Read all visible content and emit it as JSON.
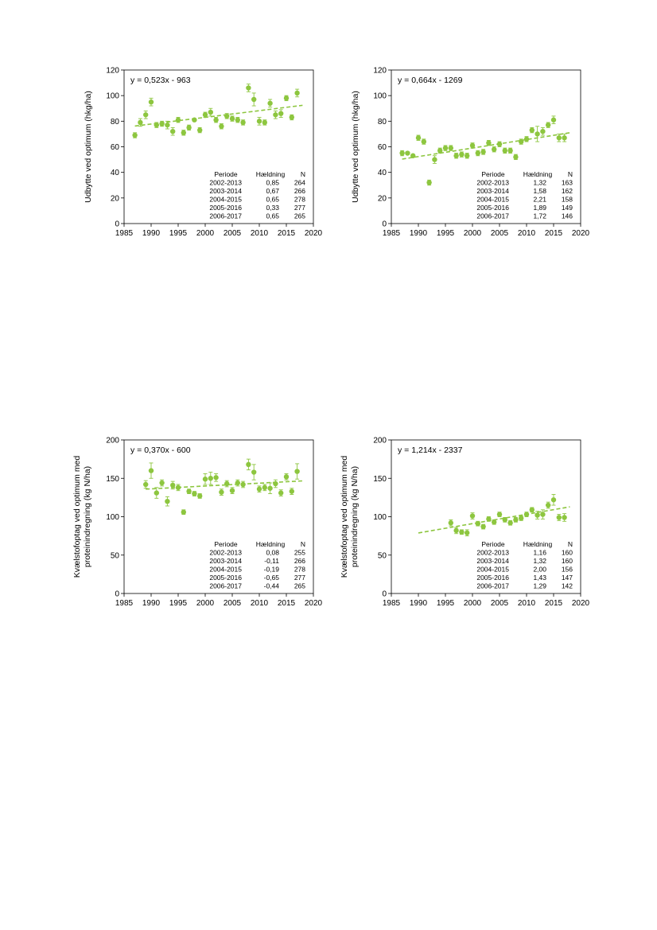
{
  "colors": {
    "marker": "#8dc63f",
    "trend": "#8dc63f",
    "axis": "#000000"
  },
  "chart_data": [
    {
      "type": "scatter",
      "equation": "y = 0,523x - 963",
      "ylabel": "Udbytte ved optimum (hkg/ha)",
      "xlim": [
        1985,
        2020
      ],
      "ylim": [
        0,
        120
      ],
      "xticks": [
        1985,
        1990,
        1995,
        2000,
        2005,
        2010,
        2015,
        2020
      ],
      "yticks": [
        0,
        20,
        40,
        60,
        80,
        100,
        120
      ],
      "trend": {
        "slope": 0.523,
        "intercept": -963,
        "x_range": [
          1987,
          2018
        ]
      },
      "points": [
        {
          "x": 1987,
          "y": 69,
          "err": 2
        },
        {
          "x": 1988,
          "y": 79,
          "err": 3
        },
        {
          "x": 1989,
          "y": 85,
          "err": 3
        },
        {
          "x": 1990,
          "y": 95,
          "err": 3
        },
        {
          "x": 1991,
          "y": 77,
          "err": 2
        },
        {
          "x": 1992,
          "y": 78,
          "err": 2
        },
        {
          "x": 1993,
          "y": 77,
          "err": 3
        },
        {
          "x": 1994,
          "y": 72,
          "err": 3
        },
        {
          "x": 1995,
          "y": 81,
          "err": 2
        },
        {
          "x": 1996,
          "y": 71,
          "err": 2
        },
        {
          "x": 1997,
          "y": 75,
          "err": 2
        },
        {
          "x": 1998,
          "y": 81,
          "err": 1
        },
        {
          "x": 1999,
          "y": 73,
          "err": 2
        },
        {
          "x": 2000,
          "y": 85,
          "err": 2
        },
        {
          "x": 2001,
          "y": 87,
          "err": 3
        },
        {
          "x": 2002,
          "y": 81,
          "err": 2
        },
        {
          "x": 2003,
          "y": 76,
          "err": 2
        },
        {
          "x": 2004,
          "y": 84,
          "err": 2
        },
        {
          "x": 2005,
          "y": 82,
          "err": 2
        },
        {
          "x": 2006,
          "y": 81,
          "err": 2
        },
        {
          "x": 2007,
          "y": 79,
          "err": 2
        },
        {
          "x": 2008,
          "y": 106,
          "err": 3
        },
        {
          "x": 2009,
          "y": 97,
          "err": 5
        },
        {
          "x": 2010,
          "y": 80,
          "err": 3
        },
        {
          "x": 2011,
          "y": 79,
          "err": 2
        },
        {
          "x": 2012,
          "y": 94,
          "err": 3
        },
        {
          "x": 2013,
          "y": 85,
          "err": 3
        },
        {
          "x": 2014,
          "y": 86,
          "err": 3
        },
        {
          "x": 2015,
          "y": 98,
          "err": 2
        },
        {
          "x": 2016,
          "y": 83,
          "err": 2
        },
        {
          "x": 2017,
          "y": 102,
          "err": 3
        }
      ],
      "table": {
        "headers": [
          "Periode",
          "Hældning",
          "N"
        ],
        "rows": [
          [
            "2002-2013",
            "0,85",
            "264"
          ],
          [
            "2003-2014",
            "0,67",
            "266"
          ],
          [
            "2004-2015",
            "0,65",
            "278"
          ],
          [
            "2005-2016",
            "0,33",
            "277"
          ],
          [
            "2006-2017",
            "0,65",
            "265"
          ]
        ]
      }
    },
    {
      "type": "scatter",
      "equation": "y = 0,664x - 1269",
      "ylabel": "Udbytte ved optimum (hkg/ha)",
      "xlim": [
        1985,
        2020
      ],
      "ylim": [
        0,
        120
      ],
      "xticks": [
        1985,
        1990,
        1995,
        2000,
        2005,
        2010,
        2015,
        2020
      ],
      "yticks": [
        0,
        20,
        40,
        60,
        80,
        100,
        120
      ],
      "trend": {
        "slope": 0.664,
        "intercept": -1269,
        "x_range": [
          1987,
          2018
        ]
      },
      "points": [
        {
          "x": 1987,
          "y": 55,
          "err": 2
        },
        {
          "x": 1988,
          "y": 55,
          "err": 1
        },
        {
          "x": 1989,
          "y": 53,
          "err": 1
        },
        {
          "x": 1990,
          "y": 67,
          "err": 2
        },
        {
          "x": 1991,
          "y": 64,
          "err": 2
        },
        {
          "x": 1992,
          "y": 32,
          "err": 2
        },
        {
          "x": 1993,
          "y": 50,
          "err": 3
        },
        {
          "x": 1994,
          "y": 57,
          "err": 2
        },
        {
          "x": 1995,
          "y": 59,
          "err": 2
        },
        {
          "x": 1996,
          "y": 59,
          "err": 2
        },
        {
          "x": 1997,
          "y": 53,
          "err": 2
        },
        {
          "x": 1998,
          "y": 54,
          "err": 2
        },
        {
          "x": 1999,
          "y": 53,
          "err": 2
        },
        {
          "x": 2000,
          "y": 61,
          "err": 2
        },
        {
          "x": 2001,
          "y": 55,
          "err": 2
        },
        {
          "x": 2002,
          "y": 56,
          "err": 2
        },
        {
          "x": 2003,
          "y": 63,
          "err": 2
        },
        {
          "x": 2004,
          "y": 58,
          "err": 2
        },
        {
          "x": 2005,
          "y": 62,
          "err": 2
        },
        {
          "x": 2006,
          "y": 57,
          "err": 2
        },
        {
          "x": 2007,
          "y": 57,
          "err": 2
        },
        {
          "x": 2008,
          "y": 52,
          "err": 2
        },
        {
          "x": 2009,
          "y": 64,
          "err": 2
        },
        {
          "x": 2010,
          "y": 66,
          "err": 2
        },
        {
          "x": 2011,
          "y": 73,
          "err": 2
        },
        {
          "x": 2012,
          "y": 70,
          "err": 6
        },
        {
          "x": 2013,
          "y": 72,
          "err": 3
        },
        {
          "x": 2014,
          "y": 77,
          "err": 2
        },
        {
          "x": 2015,
          "y": 81,
          "err": 3
        },
        {
          "x": 2016,
          "y": 67,
          "err": 3
        },
        {
          "x": 2017,
          "y": 67,
          "err": 3
        }
      ],
      "table": {
        "headers": [
          "Periode",
          "Hældning",
          "N"
        ],
        "rows": [
          [
            "2002-2013",
            "1,32",
            "163"
          ],
          [
            "2003-2014",
            "1,58",
            "162"
          ],
          [
            "2004-2015",
            "2,21",
            "158"
          ],
          [
            "2005-2016",
            "1,89",
            "149"
          ],
          [
            "2006-2017",
            "1,72",
            "146"
          ]
        ]
      }
    },
    {
      "type": "scatter",
      "equation": "y = 0,370x - 600",
      "ylabel": "Kvælstofoptag ved optimum med proteinindregning (kg N/ha)",
      "ylabel_lines": [
        "Kvælstofoptag ved optimum med",
        "proteinindregning (kg N/ha)"
      ],
      "xlim": [
        1985,
        2020
      ],
      "ylim": [
        0,
        200
      ],
      "xticks": [
        1985,
        1990,
        1995,
        2000,
        2005,
        2010,
        2015,
        2020
      ],
      "yticks": [
        0,
        50,
        100,
        150,
        200
      ],
      "trend": {
        "slope": 0.37,
        "intercept": -600,
        "x_range": [
          1989,
          2018
        ]
      },
      "points": [
        {
          "x": 1989,
          "y": 142,
          "err": 5
        },
        {
          "x": 1990,
          "y": 160,
          "err": 10
        },
        {
          "x": 1991,
          "y": 131,
          "err": 7
        },
        {
          "x": 1992,
          "y": 144,
          "err": 4
        },
        {
          "x": 1993,
          "y": 120,
          "err": 6
        },
        {
          "x": 1994,
          "y": 141,
          "err": 5
        },
        {
          "x": 1995,
          "y": 138,
          "err": 4
        },
        {
          "x": 1996,
          "y": 106,
          "err": 3
        },
        {
          "x": 1997,
          "y": 133,
          "err": 3
        },
        {
          "x": 1998,
          "y": 130,
          "err": 3
        },
        {
          "x": 1999,
          "y": 127,
          "err": 3
        },
        {
          "x": 2000,
          "y": 149,
          "err": 7
        },
        {
          "x": 2001,
          "y": 150,
          "err": 8
        },
        {
          "x": 2002,
          "y": 151,
          "err": 5
        },
        {
          "x": 2003,
          "y": 132,
          "err": 4
        },
        {
          "x": 2004,
          "y": 143,
          "err": 4
        },
        {
          "x": 2005,
          "y": 134,
          "err": 4
        },
        {
          "x": 2006,
          "y": 144,
          "err": 4
        },
        {
          "x": 2007,
          "y": 142,
          "err": 4
        },
        {
          "x": 2008,
          "y": 168,
          "err": 7
        },
        {
          "x": 2009,
          "y": 158,
          "err": 10
        },
        {
          "x": 2010,
          "y": 136,
          "err": 4
        },
        {
          "x": 2011,
          "y": 138,
          "err": 4
        },
        {
          "x": 2012,
          "y": 137,
          "err": 7
        },
        {
          "x": 2013,
          "y": 143,
          "err": 5
        },
        {
          "x": 2014,
          "y": 131,
          "err": 4
        },
        {
          "x": 2015,
          "y": 152,
          "err": 4
        },
        {
          "x": 2016,
          "y": 133,
          "err": 4
        },
        {
          "x": 2017,
          "y": 159,
          "err": 10
        }
      ],
      "table": {
        "headers": [
          "Periode",
          "Hældning",
          "N"
        ],
        "rows": [
          [
            "2002-2013",
            "0,08",
            "255"
          ],
          [
            "2003-2014",
            "-0,11",
            "266"
          ],
          [
            "2004-2015",
            "-0,19",
            "278"
          ],
          [
            "2005-2016",
            "-0,65",
            "277"
          ],
          [
            "2006-2017",
            "-0,44",
            "265"
          ]
        ]
      }
    },
    {
      "type": "scatter",
      "equation": "y = 1,214x - 2337",
      "ylabel": "Kvælstofoptag ved optimum med proteinindregning (kg N/ha)",
      "ylabel_lines": [
        "Kvælstofoptag ved optimum med",
        "proteinindregning (kg N/ha)"
      ],
      "xlim": [
        1985,
        2020
      ],
      "ylim": [
        0,
        200
      ],
      "xticks": [
        1985,
        1990,
        1995,
        2000,
        2005,
        2010,
        2015,
        2020
      ],
      "yticks": [
        0,
        50,
        100,
        150,
        200
      ],
      "trend": {
        "slope": 1.214,
        "intercept": -2337,
        "x_range": [
          1990,
          2018
        ]
      },
      "points": [
        {
          "x": 1996,
          "y": 92,
          "err": 4
        },
        {
          "x": 1997,
          "y": 82,
          "err": 4
        },
        {
          "x": 1998,
          "y": 80,
          "err": 3
        },
        {
          "x": 1999,
          "y": 79,
          "err": 4
        },
        {
          "x": 2000,
          "y": 101,
          "err": 4
        },
        {
          "x": 2001,
          "y": 91,
          "err": 3
        },
        {
          "x": 2002,
          "y": 87,
          "err": 3
        },
        {
          "x": 2003,
          "y": 97,
          "err": 3
        },
        {
          "x": 2004,
          "y": 93,
          "err": 3
        },
        {
          "x": 2005,
          "y": 103,
          "err": 3
        },
        {
          "x": 2006,
          "y": 96,
          "err": 3
        },
        {
          "x": 2007,
          "y": 92,
          "err": 3
        },
        {
          "x": 2008,
          "y": 96,
          "err": 3
        },
        {
          "x": 2009,
          "y": 98,
          "err": 3
        },
        {
          "x": 2010,
          "y": 103,
          "err": 3
        },
        {
          "x": 2011,
          "y": 109,
          "err": 3
        },
        {
          "x": 2012,
          "y": 102,
          "err": 5
        },
        {
          "x": 2013,
          "y": 103,
          "err": 6
        },
        {
          "x": 2014,
          "y": 115,
          "err": 4
        },
        {
          "x": 2015,
          "y": 122,
          "err": 7
        },
        {
          "x": 2016,
          "y": 99,
          "err": 4
        },
        {
          "x": 2017,
          "y": 99,
          "err": 5
        }
      ],
      "table": {
        "headers": [
          "Periode",
          "Hældning",
          "N"
        ],
        "rows": [
          [
            "2002-2013",
            "1,16",
            "160"
          ],
          [
            "2003-2014",
            "1,32",
            "160"
          ],
          [
            "2004-2015",
            "2,00",
            "156"
          ],
          [
            "2005-2016",
            "1,43",
            "147"
          ],
          [
            "2006-2017",
            "1,29",
            "142"
          ]
        ]
      }
    }
  ]
}
